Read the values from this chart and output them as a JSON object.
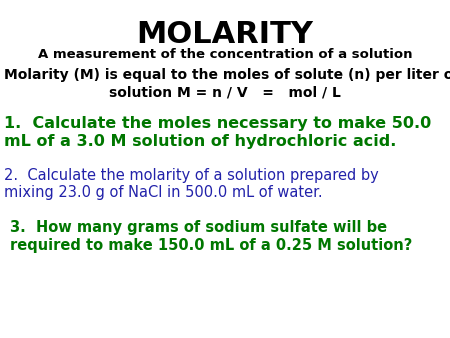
{
  "background_color": "#ffffff",
  "title": "MOLARITY",
  "title_color": "#000000",
  "title_fontsize": 22,
  "subtitle": "A measurement of the concentration of a solution",
  "subtitle_color": "#000000",
  "subtitle_fontsize": 9.5,
  "def_line1": "Molarity (M) is equal to the moles of solute (n) per liter of",
  "def_line2": "solution M = n / V   =   mol / L",
  "def_color": "#000000",
  "def_fontsize": 10,
  "q1_line1": "1.  Calculate the moles necessary to make 50.0",
  "q1_line2": "mL of a 3.0 M solution of hydrochloric acid.",
  "q1_color": "#007700",
  "q1_fontsize": 11.5,
  "q2_line1": "2.  Calculate the molarity of a solution prepared by",
  "q2_line2": "mixing 23.0 g of NaCl in 500.0 mL of water.",
  "q2_color": "#2222aa",
  "q2_fontsize": 10.5,
  "q3_line1": "3.  How many grams of sodium sulfate will be",
  "q3_line2": "required to make 150.0 mL of a 0.25 M solution?",
  "q3_color": "#007700",
  "q3_fontsize": 10.5
}
